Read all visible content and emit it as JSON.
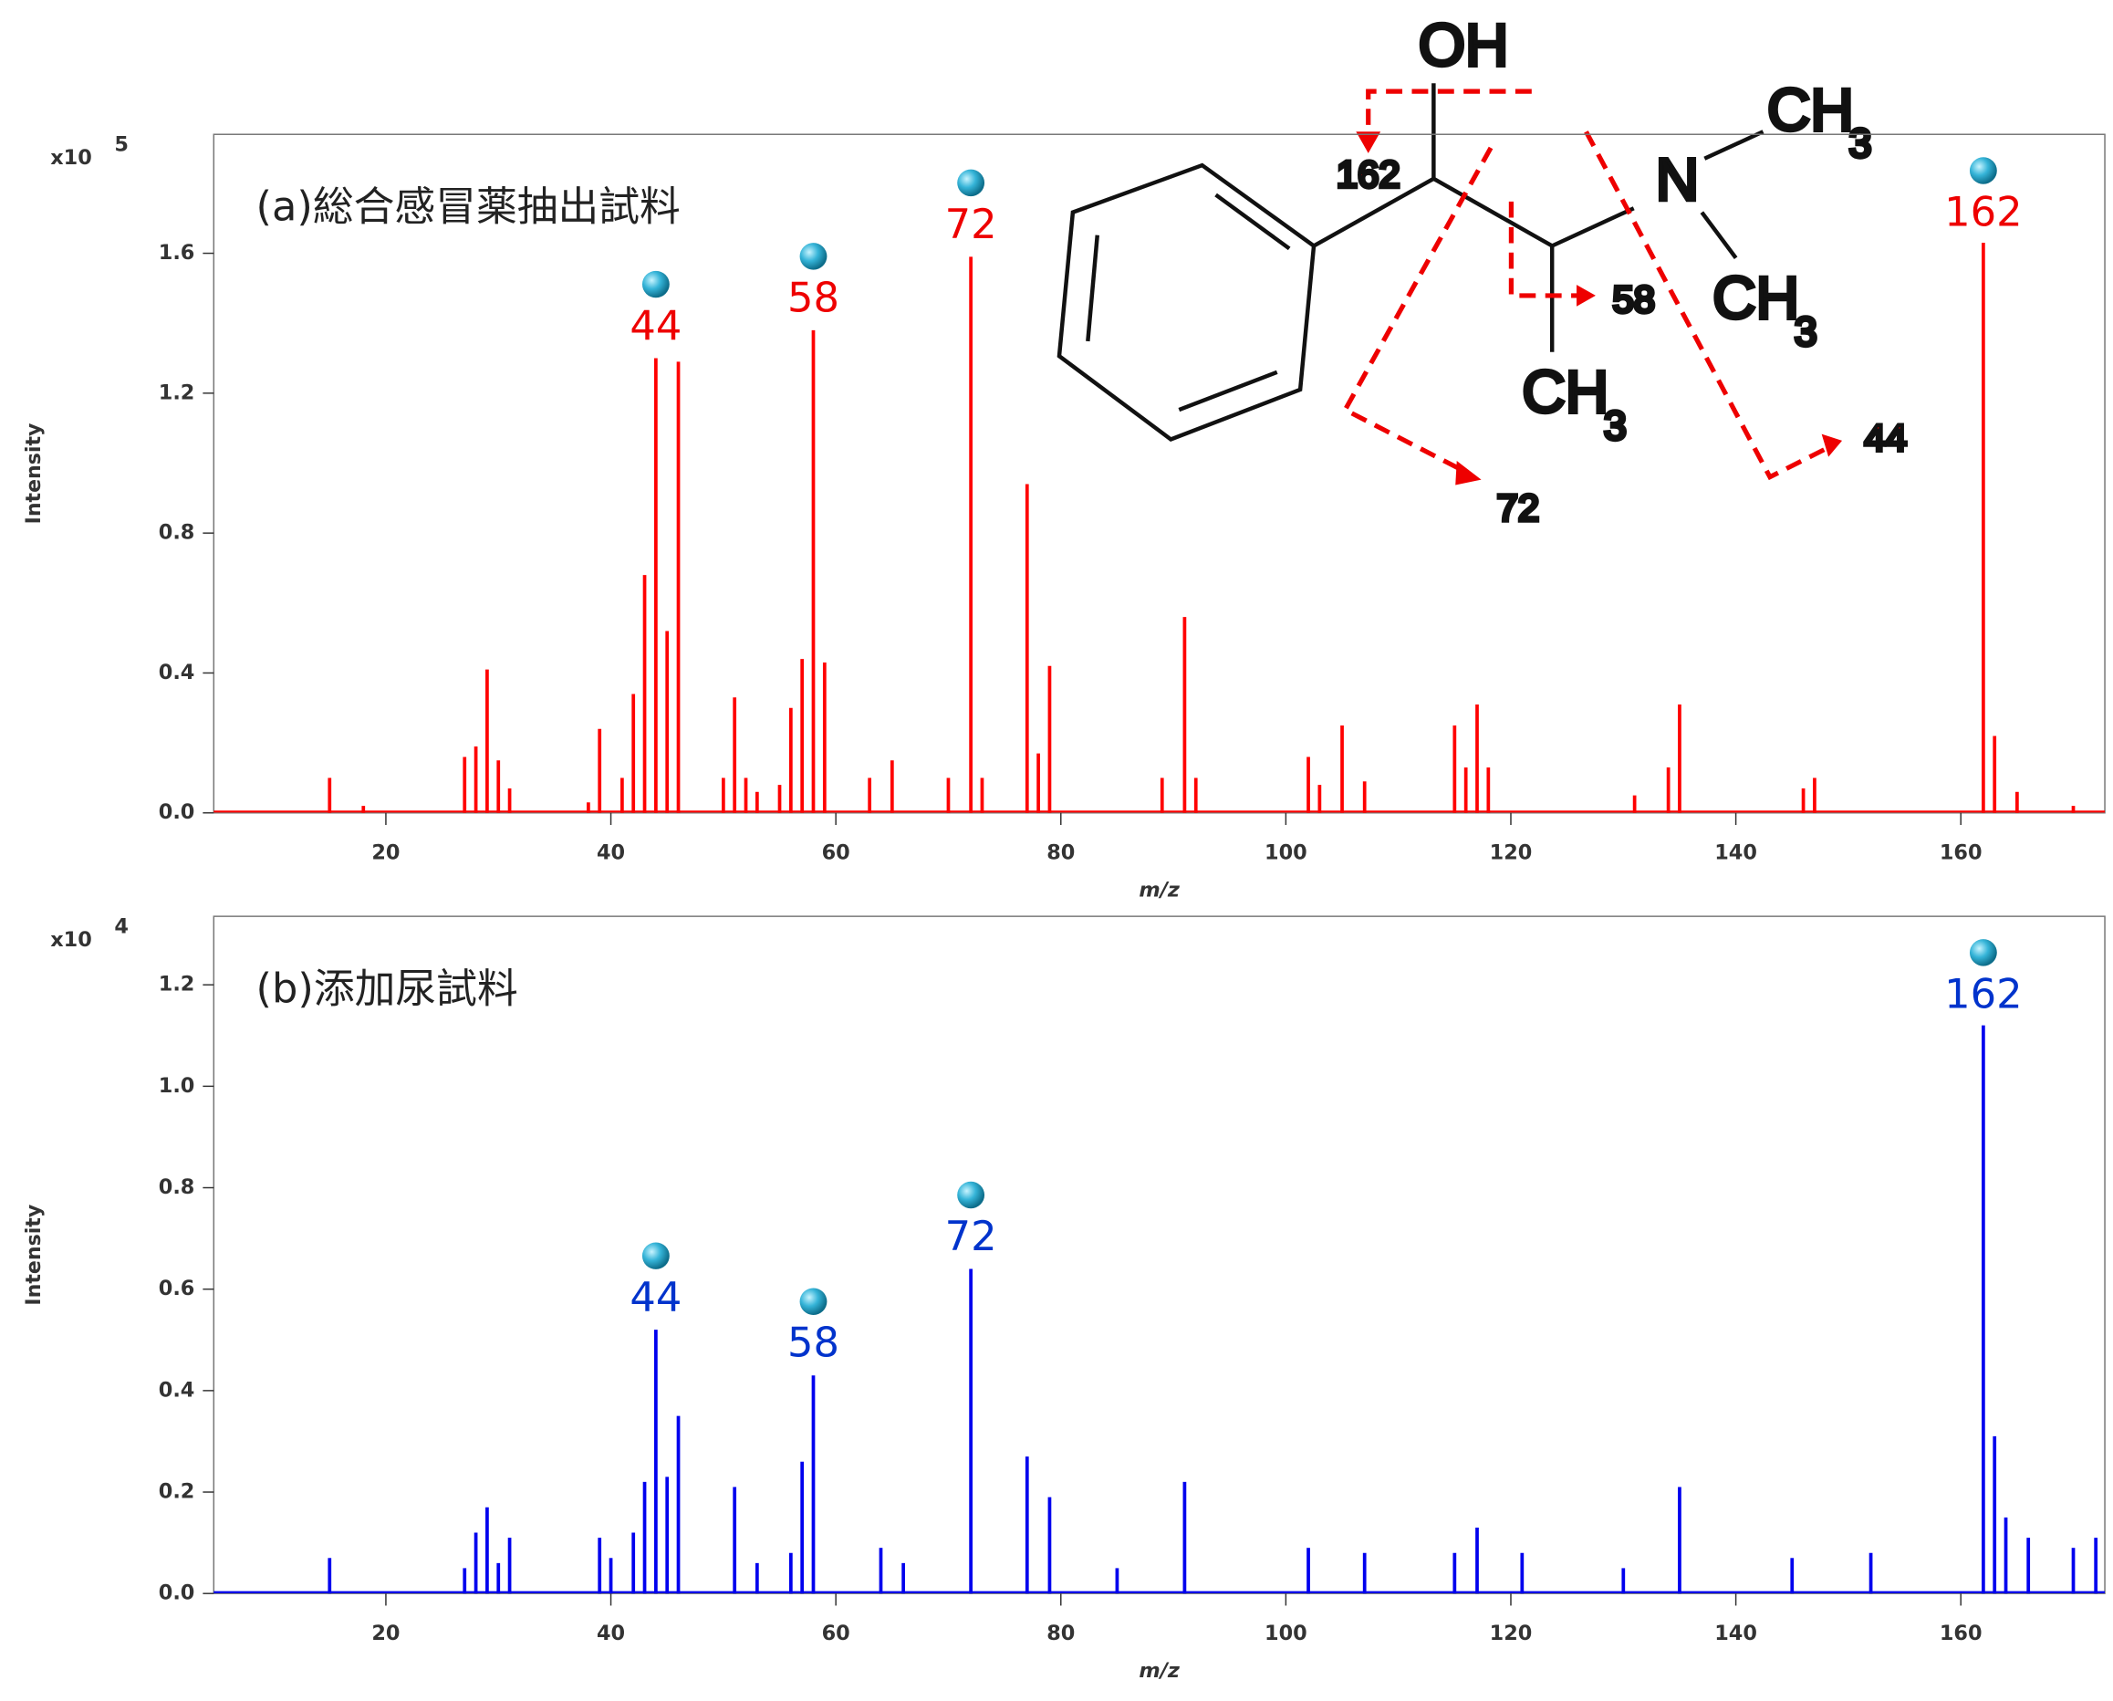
{
  "chart_data": [
    {
      "type": "stem",
      "subtitle": "(a)総合感冒薬抽出試料",
      "x_label": "m/z",
      "y_label": "Intensity",
      "y_multiplier": {
        "base": "x10",
        "exponent": "5"
      },
      "xlim": [
        4.7,
        172.8
      ],
      "xticks": [
        20,
        40,
        60,
        80,
        100,
        120,
        140,
        160
      ],
      "ylim": [
        0,
        1.94
      ],
      "yticks": [
        {
          "value": 0,
          "label": "0.0"
        },
        {
          "value": 0.4,
          "label": "0.4"
        },
        {
          "value": 0.8,
          "label": "0.8"
        },
        {
          "value": 1.2,
          "label": "1.2"
        },
        {
          "value": 1.6,
          "label": "1.6"
        }
      ],
      "series": [
        {
          "color": "#ff0000",
          "x": [
            15,
            18,
            27,
            28,
            29,
            30,
            31,
            38,
            39,
            41,
            42,
            43,
            44,
            45,
            46,
            50,
            51,
            52,
            53,
            55,
            56,
            57,
            58,
            59,
            63,
            65,
            70,
            72,
            73,
            77,
            78,
            79,
            89,
            91,
            92,
            102,
            103,
            105,
            107,
            115,
            116,
            117,
            118,
            131,
            134,
            135,
            146,
            147,
            162,
            163,
            165,
            170
          ],
          "values": [
            0.1,
            0.02,
            0.16,
            0.19,
            0.41,
            0.15,
            0.07,
            0.03,
            0.24,
            0.1,
            0.34,
            0.68,
            1.3,
            0.52,
            1.29,
            0.1,
            0.33,
            0.1,
            0.06,
            0.08,
            0.3,
            0.44,
            1.38,
            0.43,
            0.1,
            0.15,
            0.1,
            1.59,
            0.1,
            0.94,
            0.17,
            0.42,
            0.1,
            0.56,
            0.1,
            0.16,
            0.08,
            0.25,
            0.09,
            0.25,
            0.13,
            0.31,
            0.13,
            0.05,
            0.13,
            0.31,
            0.07,
            0.1,
            1.63,
            0.22,
            0.06,
            0.02
          ]
        }
      ],
      "peak_labels": [
        44,
        58,
        72,
        162
      ],
      "structure": {
        "hydroxyl": "OH",
        "nitrogen": "N",
        "methyl": [
          "CH",
          "CH",
          "CH"
        ],
        "subscripts": [
          "3",
          "3",
          "3"
        ],
        "fragments": [
          "162",
          "72",
          "58",
          "44"
        ]
      }
    },
    {
      "type": "stem",
      "subtitle": "(b)添加尿試料",
      "x_label": "m/z",
      "y_label": "Intensity",
      "y_multiplier": {
        "base": "x10",
        "exponent": "4"
      },
      "xlim": [
        4.7,
        172.8
      ],
      "xticks": [
        20,
        40,
        60,
        80,
        100,
        120,
        140,
        160
      ],
      "ylim": [
        0,
        1.335
      ],
      "yticks": [
        {
          "value": 0,
          "label": "0.0"
        },
        {
          "value": 0.2,
          "label": "0.2"
        },
        {
          "value": 0.4,
          "label": "0.4"
        },
        {
          "value": 0.6,
          "label": "0.6"
        },
        {
          "value": 0.8,
          "label": "0.8"
        },
        {
          "value": 1.0,
          "label": "1.0"
        },
        {
          "value": 1.2,
          "label": "1.2"
        }
      ],
      "series": [
        {
          "color": "#0000ee",
          "x": [
            15,
            27,
            28,
            29,
            30,
            31,
            39,
            40,
            42,
            43,
            44,
            45,
            46,
            51,
            53,
            56,
            57,
            58,
            64,
            66,
            72,
            77,
            79,
            85,
            91,
            102,
            107,
            115,
            117,
            121,
            130,
            135,
            145,
            152,
            162,
            163,
            164,
            166,
            170,
            172
          ],
          "values": [
            0.07,
            0.05,
            0.12,
            0.17,
            0.06,
            0.11,
            0.11,
            0.07,
            0.12,
            0.22,
            0.52,
            0.23,
            0.35,
            0.21,
            0.06,
            0.08,
            0.26,
            0.43,
            0.09,
            0.06,
            0.64,
            0.27,
            0.19,
            0.05,
            0.22,
            0.09,
            0.08,
            0.08,
            0.13,
            0.08,
            0.05,
            0.21,
            0.07,
            0.08,
            1.12,
            0.31,
            0.15,
            0.11,
            0.09,
            0.11
          ]
        }
      ],
      "peak_labels": [
        44,
        58,
        72,
        162
      ]
    }
  ]
}
